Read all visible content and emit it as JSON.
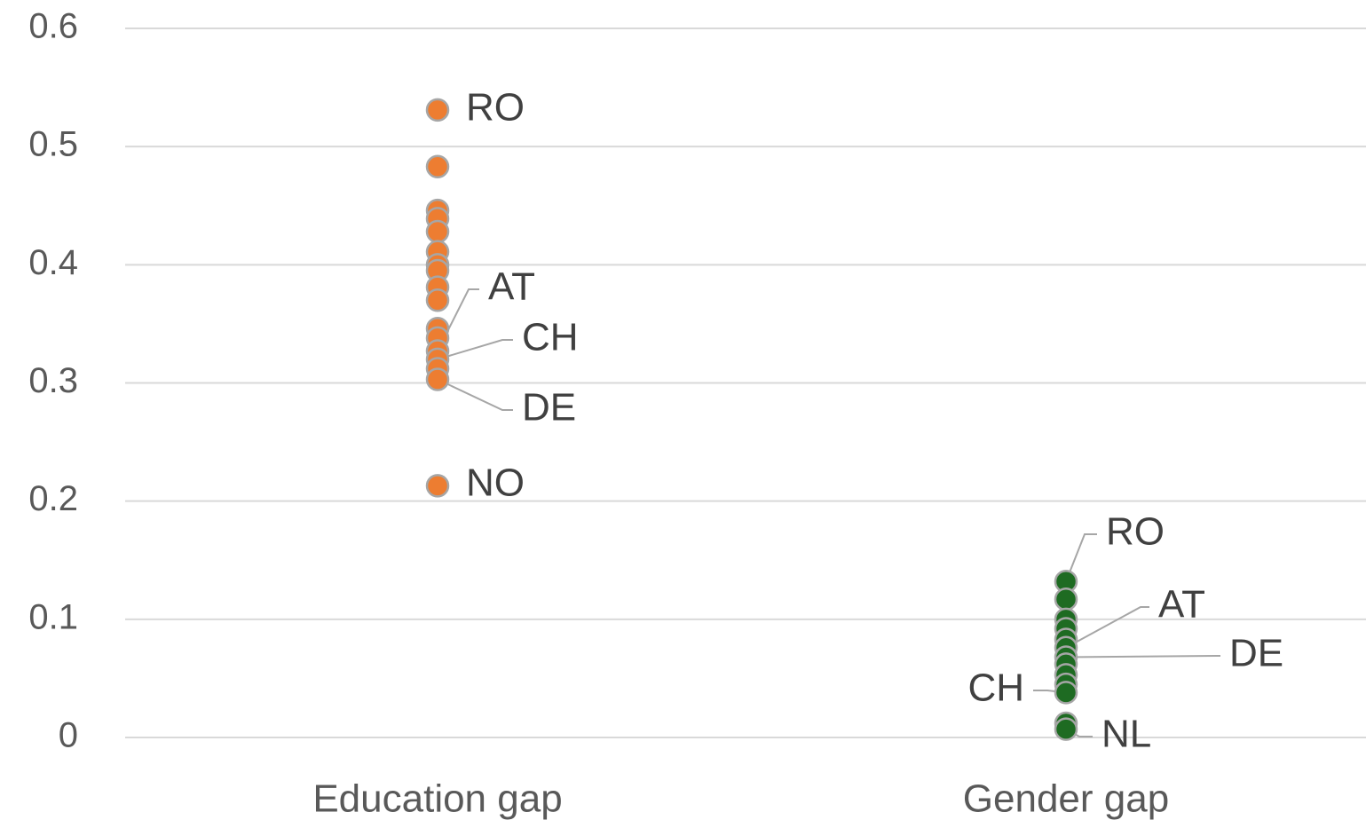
{
  "chart_data": {
    "type": "scatter",
    "categories": [
      "Education gap",
      "Gender gap"
    ],
    "ylim": [
      0,
      0.6
    ],
    "yticks": [
      0,
      0.1,
      0.2,
      0.3,
      0.4,
      0.5,
      0.6
    ],
    "grid": true,
    "series": [
      {
        "color": "#ed7d31",
        "values": [
          0.531,
          0.483,
          0.446,
          0.439,
          0.428,
          0.411,
          0.4,
          0.395,
          0.381,
          0.37,
          0.346,
          0.338,
          0.327,
          0.32,
          0.312,
          0.303,
          0.213
        ],
        "labels": [
          "RO",
          null,
          null,
          null,
          null,
          null,
          null,
          null,
          null,
          null,
          null,
          null,
          "AT",
          "CH",
          null,
          "DE",
          "NO"
        ]
      },
      {
        "color": "#1e6b22",
        "values": [
          0.132,
          0.117,
          0.1,
          0.092,
          0.083,
          0.076,
          0.068,
          0.062,
          0.053,
          0.045,
          0.038,
          0.012,
          0.007
        ],
        "labels": [
          "RO",
          null,
          null,
          null,
          null,
          "AT",
          "DE",
          null,
          null,
          null,
          "CH",
          null,
          "NL"
        ]
      }
    ]
  }
}
